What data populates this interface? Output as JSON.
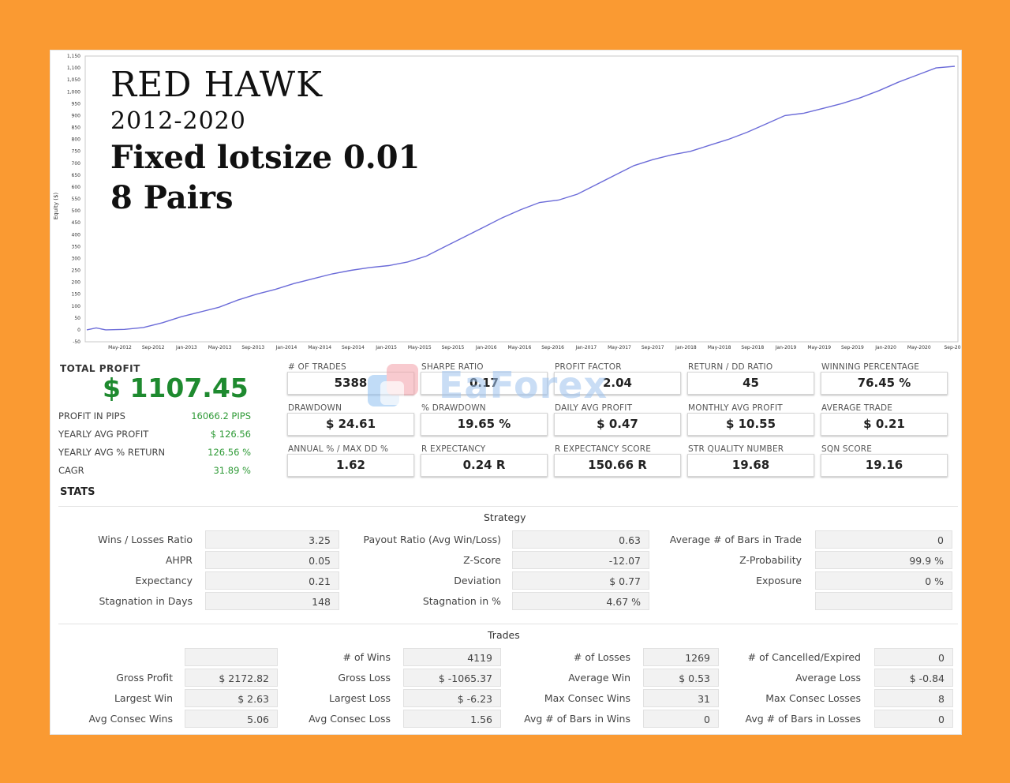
{
  "chart_data": {
    "type": "line",
    "ylabel": "Equity ($)",
    "y_ticks": [
      "1,150",
      "1,100",
      "1,050",
      "1,000",
      "950",
      "900",
      "850",
      "800",
      "750",
      "700",
      "650",
      "600",
      "550",
      "500",
      "450",
      "400",
      "350",
      "300",
      "250",
      "200",
      "150",
      "100",
      "50",
      "0",
      "-50"
    ],
    "ylim": [
      -50,
      1150
    ],
    "x_ticks": [
      "May-2012",
      "Sep-2012",
      "Jan-2013",
      "May-2013",
      "Sep-2013",
      "Jan-2014",
      "May-2014",
      "Sep-2014",
      "Jan-2015",
      "May-2015",
      "Sep-2015",
      "Jan-2016",
      "May-2016",
      "Sep-2016",
      "Jan-2017",
      "May-2017",
      "Sep-2017",
      "Jan-2018",
      "May-2018",
      "Sep-2018",
      "Jan-2019",
      "May-2019",
      "Sep-2019",
      "Jan-2020",
      "May-2020",
      "Sep-20"
    ],
    "line_color": "#6b6bd8",
    "points": [
      [
        0,
        0
      ],
      [
        0.5,
        8
      ],
      [
        1,
        0
      ],
      [
        2,
        2
      ],
      [
        3,
        10
      ],
      [
        4,
        30
      ],
      [
        5,
        55
      ],
      [
        6,
        75
      ],
      [
        7,
        95
      ],
      [
        8,
        125
      ],
      [
        9,
        150
      ],
      [
        10,
        170
      ],
      [
        11,
        195
      ],
      [
        12,
        215
      ],
      [
        13,
        235
      ],
      [
        14,
        250
      ],
      [
        15,
        262
      ],
      [
        16,
        270
      ],
      [
        17,
        285
      ],
      [
        18,
        310
      ],
      [
        19,
        350
      ],
      [
        20,
        390
      ],
      [
        21,
        430
      ],
      [
        22,
        470
      ],
      [
        23,
        505
      ],
      [
        24,
        535
      ],
      [
        25,
        545
      ],
      [
        26,
        570
      ],
      [
        27,
        610
      ],
      [
        28,
        650
      ],
      [
        29,
        690
      ],
      [
        30,
        715
      ],
      [
        31,
        735
      ],
      [
        32,
        750
      ],
      [
        33,
        775
      ],
      [
        34,
        800
      ],
      [
        35,
        830
      ],
      [
        36,
        865
      ],
      [
        37,
        900
      ],
      [
        38,
        910
      ],
      [
        39,
        930
      ],
      [
        40,
        950
      ],
      [
        41,
        975
      ],
      [
        42,
        1005
      ],
      [
        43,
        1040
      ],
      [
        44,
        1070
      ],
      [
        45,
        1100
      ],
      [
        46,
        1107
      ]
    ],
    "grid": false
  },
  "overlay": {
    "title": "RED HAWK",
    "years": "2012-2020",
    "lotsize": "Fixed lotsize 0.01",
    "pairs": "8 Pairs"
  },
  "summary": {
    "total_profit_label": "TOTAL PROFIT",
    "total_profit_value": "$ 1107.45",
    "rows": [
      {
        "label": "PROFIT IN PIPS",
        "value": "16066.2 PIPS"
      },
      {
        "label": "YEARLY AVG PROFIT",
        "value": "$ 126.56"
      },
      {
        "label": "YEARLY AVG % RETURN",
        "value": "126.56 %"
      },
      {
        "label": "CAGR",
        "value": "31.89 %"
      }
    ],
    "stats_label": "STATS"
  },
  "metrics": [
    {
      "label": "# OF TRADES",
      "value": "5388"
    },
    {
      "label": "SHARPE RATIO",
      "value": "0.17"
    },
    {
      "label": "PROFIT FACTOR",
      "value": "2.04"
    },
    {
      "label": "RETURN / DD RATIO",
      "value": "45"
    },
    {
      "label": "WINNING PERCENTAGE",
      "value": "76.45 %"
    },
    {
      "label": "DRAWDOWN",
      "value": "$ 24.61"
    },
    {
      "label": "% DRAWDOWN",
      "value": "19.65 %"
    },
    {
      "label": "DAILY AVG PROFIT",
      "value": "$ 0.47"
    },
    {
      "label": "MONTHLY AVG PROFIT",
      "value": "$ 10.55"
    },
    {
      "label": "AVERAGE TRADE",
      "value": "$ 0.21"
    },
    {
      "label": "ANNUAL % / MAX DD %",
      "value": "1.62"
    },
    {
      "label": "R EXPECTANCY",
      "value": "0.24 R"
    },
    {
      "label": "R EXPECTANCY SCORE",
      "value": "150.66 R"
    },
    {
      "label": "STR QUALITY NUMBER",
      "value": "19.68"
    },
    {
      "label": "SQN SCORE",
      "value": "19.16"
    }
  ],
  "watermark": "EaForex",
  "strategy": {
    "title": "Strategy",
    "rows": [
      [
        "Wins / Losses Ratio",
        "3.25",
        "Payout Ratio (Avg Win/Loss)",
        "0.63",
        "Average # of Bars in Trade",
        "0"
      ],
      [
        "AHPR",
        "0.05",
        "Z-Score",
        "-12.07",
        "Z-Probability",
        "99.9 %"
      ],
      [
        "Expectancy",
        "0.21",
        "Deviation",
        "$ 0.77",
        "Exposure",
        "0 %"
      ],
      [
        "Stagnation in Days",
        "148",
        "Stagnation in %",
        "4.67 %",
        "",
        ""
      ]
    ]
  },
  "trades": {
    "title": "Trades",
    "rows": [
      [
        "",
        "",
        "# of Wins",
        "4119",
        "# of Losses",
        "1269",
        "# of Cancelled/Expired",
        "0"
      ],
      [
        "Gross Profit",
        "$ 2172.82",
        "Gross Loss",
        "$ -1065.37",
        "Average Win",
        "$ 0.53",
        "Average Loss",
        "$ -0.84"
      ],
      [
        "Largest Win",
        "$ 2.63",
        "Largest Loss",
        "$ -6.23",
        "Max Consec Wins",
        "31",
        "Max Consec Losses",
        "8"
      ],
      [
        "Avg Consec Wins",
        "5.06",
        "Avg Consec Loss",
        "1.56",
        "Avg # of Bars in Wins",
        "0",
        "Avg # of Bars in Losses",
        "0"
      ]
    ]
  }
}
